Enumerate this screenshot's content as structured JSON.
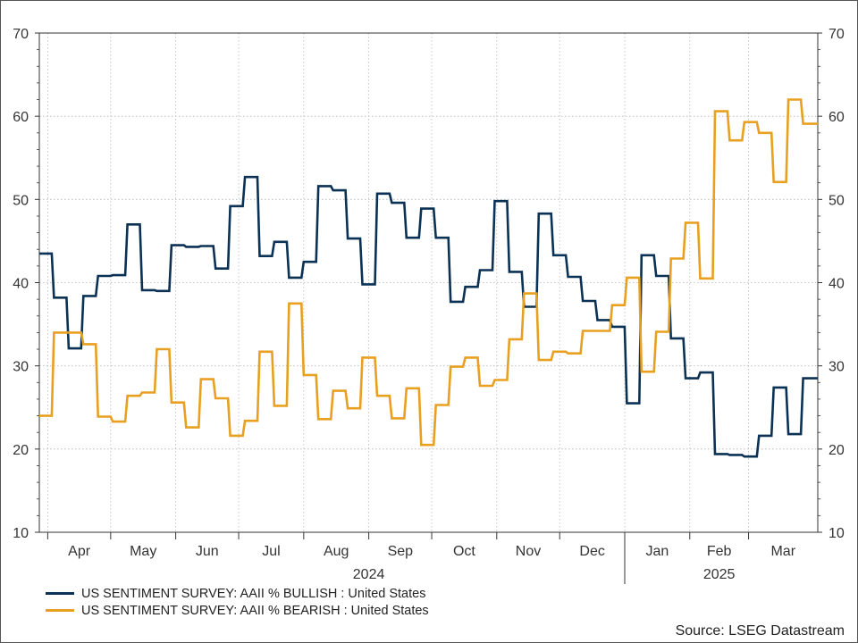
{
  "chart_data": {
    "type": "line",
    "x_unit": "week",
    "x_start": "2024-03-28",
    "x_end": "2025-04-03",
    "ylim": [
      10,
      70
    ],
    "yticks": [
      10,
      20,
      30,
      40,
      50,
      60,
      70
    ],
    "month_ticks": [
      {
        "label": "Apr",
        "date": "2024-04-01"
      },
      {
        "label": "May",
        "date": "2024-05-01"
      },
      {
        "label": "Jun",
        "date": "2024-06-01"
      },
      {
        "label": "Jul",
        "date": "2024-07-01"
      },
      {
        "label": "Aug",
        "date": "2024-08-01"
      },
      {
        "label": "Sep",
        "date": "2024-09-01"
      },
      {
        "label": "Oct",
        "date": "2024-10-01"
      },
      {
        "label": "Nov",
        "date": "2024-11-01"
      },
      {
        "label": "Dec",
        "date": "2024-12-01"
      },
      {
        "label": "Jan",
        "date": "2025-01-01"
      },
      {
        "label": "Feb",
        "date": "2025-02-01"
      },
      {
        "label": "Mar",
        "date": "2025-03-01"
      }
    ],
    "year_labels": [
      {
        "label": "2024",
        "date": "2024-09-01"
      },
      {
        "label": "2025",
        "date": "2025-02-15"
      }
    ],
    "year_separator": "2025-01-01",
    "grid": true,
    "legend_position": "bottom-left",
    "series": [
      {
        "name": "US SENTIMENT SURVEY: AAII % BULLISH : United States",
        "color": "#0b3154",
        "x": [
          "2024-03-28",
          "2024-04-04",
          "2024-04-11",
          "2024-04-18",
          "2024-04-25",
          "2024-05-02",
          "2024-05-09",
          "2024-05-16",
          "2024-05-23",
          "2024-05-30",
          "2024-06-06",
          "2024-06-13",
          "2024-06-20",
          "2024-06-27",
          "2024-07-04",
          "2024-07-11",
          "2024-07-18",
          "2024-07-25",
          "2024-08-01",
          "2024-08-08",
          "2024-08-15",
          "2024-08-22",
          "2024-08-29",
          "2024-09-05",
          "2024-09-12",
          "2024-09-19",
          "2024-09-26",
          "2024-10-03",
          "2024-10-10",
          "2024-10-17",
          "2024-10-24",
          "2024-10-31",
          "2024-11-07",
          "2024-11-14",
          "2024-11-21",
          "2024-11-28",
          "2024-12-05",
          "2024-12-12",
          "2024-12-19",
          "2024-12-26",
          "2025-01-02",
          "2025-01-09",
          "2025-01-16",
          "2025-01-23",
          "2025-01-30",
          "2025-02-06",
          "2025-02-13",
          "2025-02-20",
          "2025-02-27",
          "2025-03-06",
          "2025-03-13",
          "2025-03-20",
          "2025-03-27",
          "2025-04-03"
        ],
        "y": [
          43.5,
          38.2,
          32.1,
          38.4,
          40.8,
          40.9,
          47.0,
          39.1,
          39.0,
          44.5,
          44.3,
          44.4,
          41.7,
          49.2,
          52.7,
          43.2,
          44.9,
          40.6,
          42.5,
          51.6,
          51.1,
          45.3,
          39.8,
          50.7,
          49.6,
          45.4,
          48.9,
          45.4,
          37.7,
          39.5,
          41.5,
          49.8,
          41.3,
          37.1,
          48.3,
          43.3,
          40.7,
          37.8,
          35.5,
          34.7,
          25.5,
          43.3,
          40.8,
          33.3,
          28.5,
          29.2,
          19.4,
          19.3,
          19.1,
          21.6,
          27.4,
          21.8,
          28.5,
          28.5
        ]
      },
      {
        "name": "US SENTIMENT SURVEY: AAII % BEARISH : United States",
        "color": "#e8a020",
        "x": [
          "2024-03-28",
          "2024-04-04",
          "2024-04-11",
          "2024-04-18",
          "2024-04-25",
          "2024-05-02",
          "2024-05-09",
          "2024-05-16",
          "2024-05-23",
          "2024-05-30",
          "2024-06-06",
          "2024-06-13",
          "2024-06-20",
          "2024-06-27",
          "2024-07-04",
          "2024-07-11",
          "2024-07-18",
          "2024-07-25",
          "2024-08-01",
          "2024-08-08",
          "2024-08-15",
          "2024-08-22",
          "2024-08-29",
          "2024-09-05",
          "2024-09-12",
          "2024-09-19",
          "2024-09-26",
          "2024-10-03",
          "2024-10-10",
          "2024-10-17",
          "2024-10-24",
          "2024-10-31",
          "2024-11-07",
          "2024-11-14",
          "2024-11-21",
          "2024-11-28",
          "2024-12-05",
          "2024-12-12",
          "2024-12-19",
          "2024-12-26",
          "2025-01-02",
          "2025-01-09",
          "2025-01-16",
          "2025-01-23",
          "2025-01-30",
          "2025-02-06",
          "2025-02-13",
          "2025-02-20",
          "2025-02-27",
          "2025-03-06",
          "2025-03-13",
          "2025-03-20",
          "2025-03-27",
          "2025-04-03"
        ],
        "y": [
          24.0,
          34.0,
          34.0,
          32.6,
          23.9,
          23.3,
          26.4,
          26.8,
          32.0,
          25.6,
          22.6,
          28.4,
          26.1,
          21.6,
          23.4,
          31.7,
          25.2,
          37.5,
          28.9,
          23.6,
          27.0,
          24.9,
          31.0,
          26.4,
          23.7,
          27.3,
          20.5,
          25.3,
          29.9,
          31.0,
          27.6,
          28.3,
          33.2,
          38.7,
          30.7,
          31.7,
          31.5,
          34.2,
          34.2,
          37.3,
          40.6,
          29.3,
          34.1,
          42.9,
          47.2,
          40.5,
          60.6,
          57.1,
          59.3,
          58.0,
          52.1,
          62.0,
          59.1,
          59.1
        ]
      }
    ]
  },
  "source": "Source: LSEG Datastream"
}
